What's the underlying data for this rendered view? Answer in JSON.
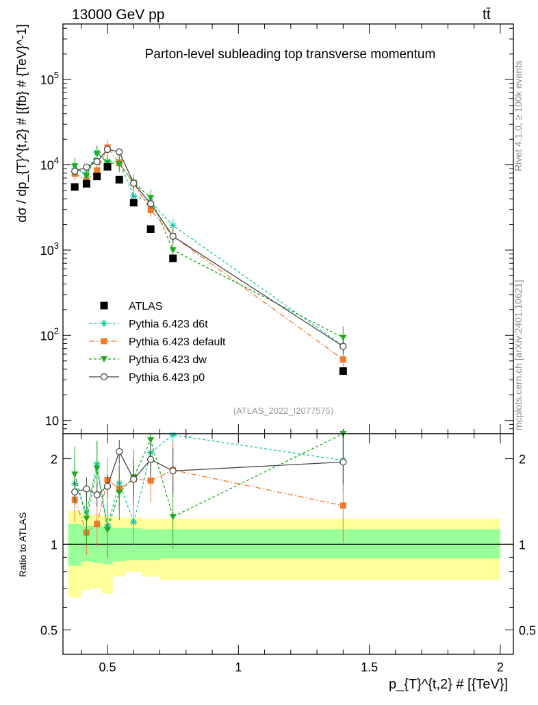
{
  "header": {
    "energy": "13000 GeV pp",
    "process": "tt̄"
  },
  "side_labels": {
    "rivet": "Rivet 4.1.0, ≥ 100k events",
    "mcplots": "mcplots.cern.ch [arXiv:2401.10621]"
  },
  "chart_data": {
    "type": "scatter",
    "title": "Parton-level subleading top transverse momentum",
    "analysis_tag": "(ATLAS_2022_I2077575)",
    "xlabel": "p_{T}^{t,2} # [{TeV}]",
    "ylabel": "dσ / dp_{T}^{t,2} # [{fb} # {TeV}^-1]",
    "ratio_ylabel": "Ratio to ATLAS",
    "xlim": [
      0.33,
      2.05
    ],
    "ylim": [
      7,
      450000
    ],
    "ratio_ylim": [
      0.41,
      2.45
    ],
    "x_ticks": [
      "0.5",
      "1",
      "1.5",
      "2"
    ],
    "y_ticks": [
      "10",
      "10^2",
      "10^3",
      "10^4",
      "10^5"
    ],
    "ratio_ticks": [
      "0.5",
      "1",
      "2"
    ],
    "x": [
      0.375,
      0.42,
      0.46,
      0.5,
      0.545,
      0.6,
      0.665,
      0.75,
      1.4
    ],
    "bin_edges": [
      0.35,
      0.4,
      0.44,
      0.48,
      0.52,
      0.57,
      0.63,
      0.7,
      0.8,
      2.0
    ],
    "data": {
      "name": "ATLAS",
      "values": [
        5500,
        6000,
        7300,
        9500,
        6700,
        3600,
        1760,
        800,
        38
      ]
    },
    "band": {
      "stat_lo": [
        0.84,
        0.87,
        0.86,
        0.85,
        0.87,
        0.88,
        0.88,
        0.89,
        0.89
      ],
      "stat_hi": [
        1.18,
        1.16,
        1.16,
        1.15,
        1.14,
        1.14,
        1.13,
        1.13,
        1.13
      ],
      "tot_lo": [
        0.65,
        0.69,
        0.7,
        0.67,
        0.77,
        0.8,
        0.77,
        0.75,
        0.75
      ],
      "tot_hi": [
        1.31,
        1.28,
        1.27,
        1.26,
        1.24,
        1.24,
        1.23,
        1.23,
        1.23
      ]
    },
    "series": [
      {
        "name": "Pythia 6.423 d6t",
        "color": "#1fc7a3",
        "dash": "4,3",
        "marker": "star",
        "values": [
          9000,
          7800,
          14000,
          11000,
          11000,
          4300,
          3700,
          1940,
          75
        ],
        "errors": [
          0.22,
          0.2,
          0.2,
          0.2,
          0.2,
          0.2,
          0.2,
          0.2,
          0.3
        ]
      },
      {
        "name": "Pythia 6.423 default",
        "color": "#f07a2a",
        "dash": "8,3,2,3",
        "marker": "square",
        "values": [
          7900,
          6600,
          8600,
          16000,
          10500,
          6100,
          2950,
          1460,
          52
        ],
        "errors": [
          0.2,
          0.2,
          0.2,
          0.2,
          0.2,
          0.2,
          0.2,
          0.25,
          0.35
        ]
      },
      {
        "name": "Pythia 6.423 dw",
        "color": "#1faa1f",
        "dash": "4,3",
        "marker": "triangle",
        "values": [
          9700,
          7400,
          13500,
          10700,
          10200,
          6200,
          4100,
          1000,
          94
        ],
        "errors": [
          0.25,
          0.25,
          0.25,
          0.25,
          0.25,
          0.25,
          0.25,
          0.3,
          0.35
        ]
      },
      {
        "name": "Pythia 6.423 p0",
        "color": "#444444",
        "dash": "",
        "marker": "circle",
        "values": [
          8400,
          9400,
          10900,
          15200,
          14200,
          6100,
          3500,
          1450,
          74
        ],
        "errors": [
          0.1,
          0.1,
          0.1,
          0.1,
          0.1,
          0.15,
          0.15,
          0.2,
          0.2
        ]
      }
    ],
    "legend_placement": "lower-left of main panel"
  }
}
